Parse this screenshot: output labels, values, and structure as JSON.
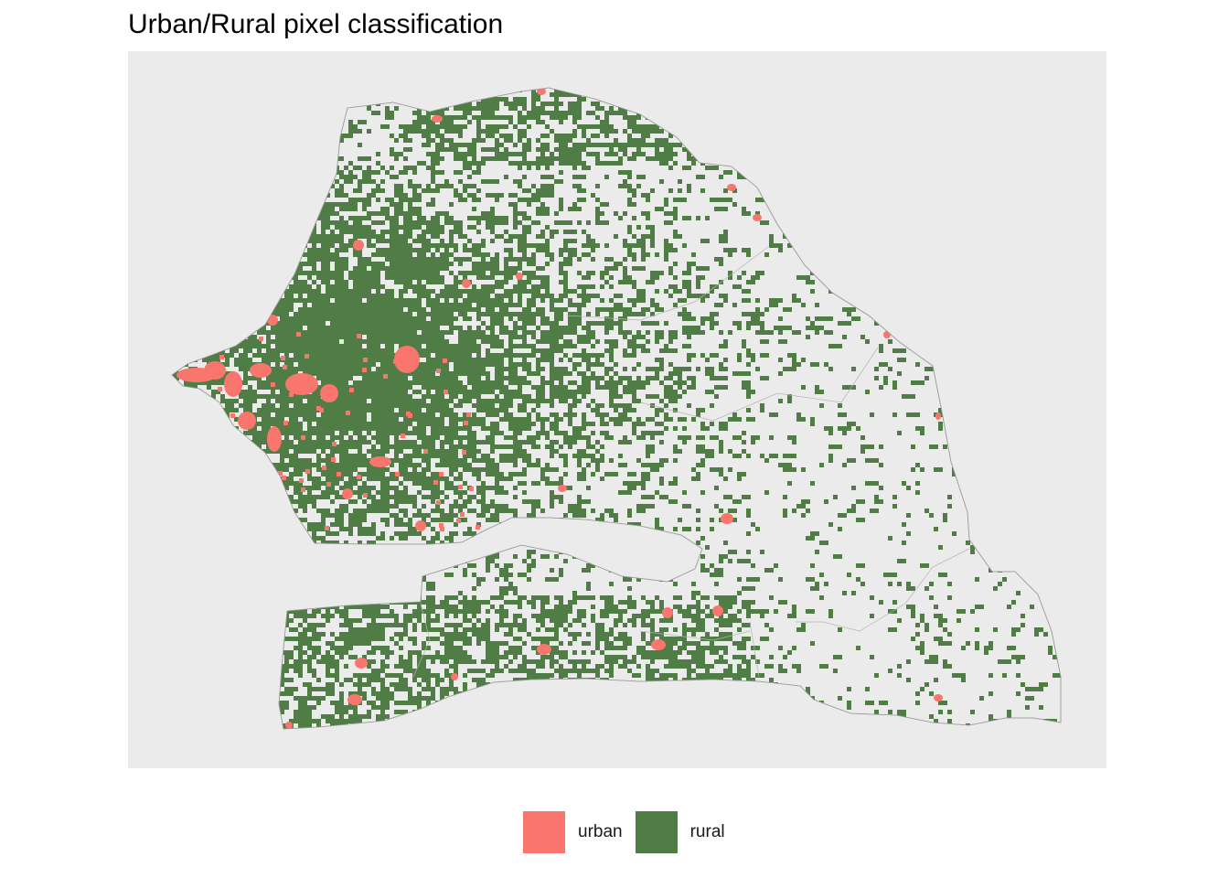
{
  "title": "Urban/Rural pixel classification",
  "legend": [
    {
      "label": "urban",
      "color": "#f8766d"
    },
    {
      "label": "rural",
      "color": "#4f7d45"
    }
  ],
  "panel_background": "#ebebeb",
  "border_color": "#9e9e9e"
}
